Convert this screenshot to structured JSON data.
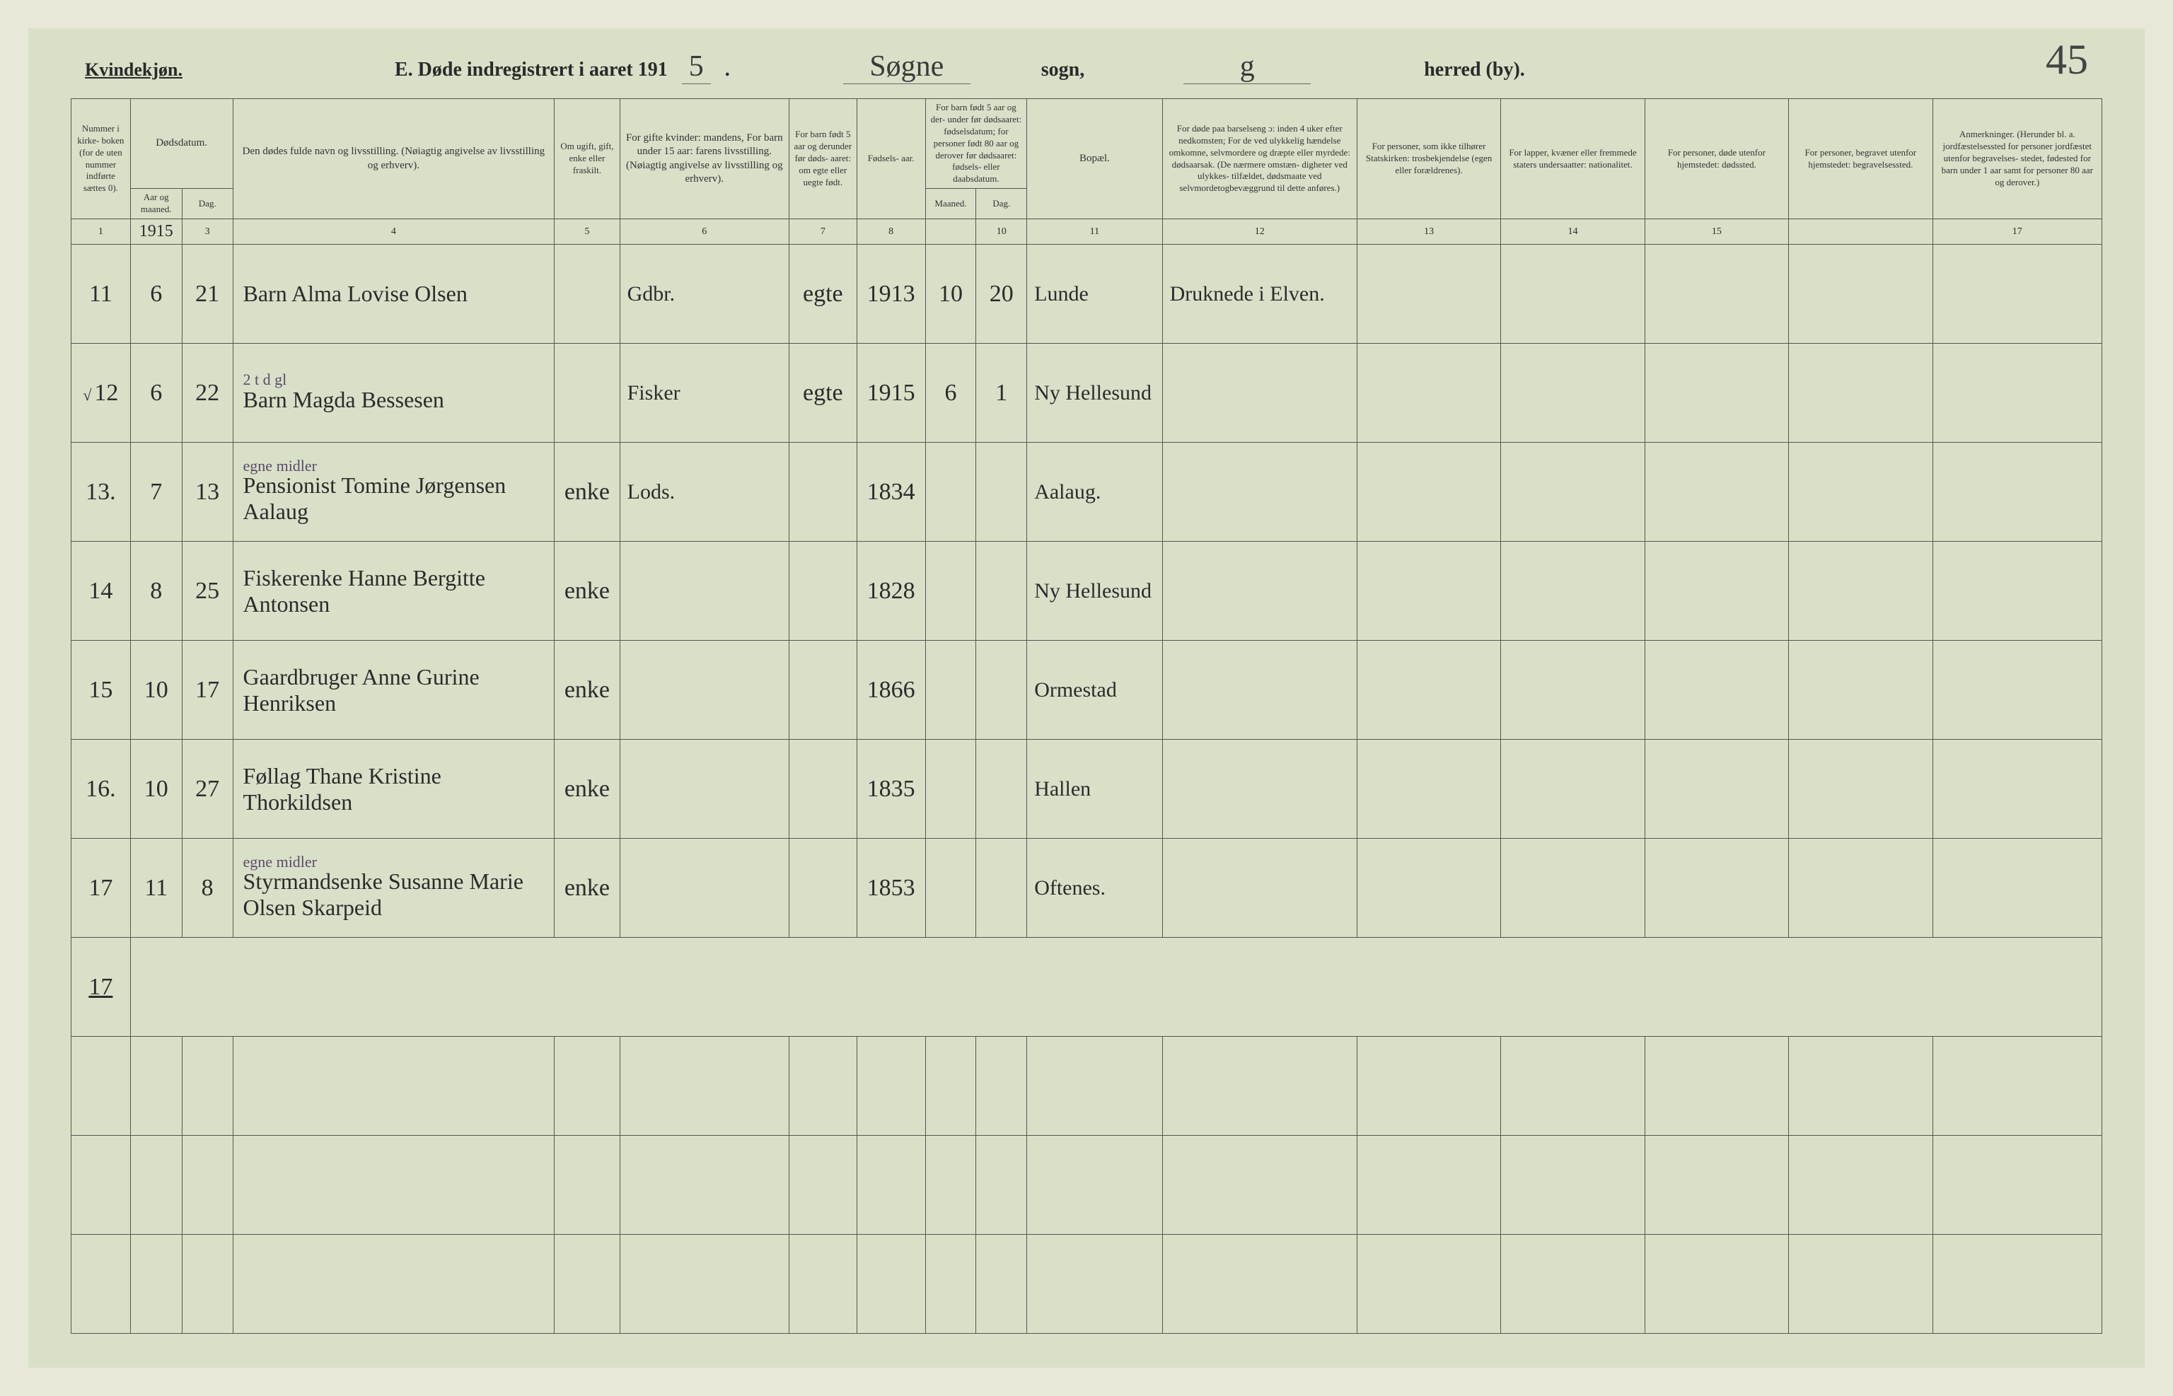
{
  "header": {
    "kvindekjon": "Kvindekjøn.",
    "title_prefix": "E.  Døde indregistrert i aaret 191",
    "year_suffix": "5",
    "sogn_value": "Søgne",
    "sogn_label": "sogn,",
    "herred_value": "g",
    "herred_label": "herred (by).",
    "page_number": "45"
  },
  "columns": {
    "c1": "Nummer i kirke- boken (for de uten nummer indførte sættes 0).",
    "c2_group": "Dødsdatum.",
    "c2a": "Aar og maaned.",
    "c2b": "Dag.",
    "c4": "Den dødes fulde navn og livsstilling.\n(Nøiagtig angivelse av livsstilling og erhverv).",
    "c5": "Om ugift, gift, enke eller fraskilt.",
    "c6": "For gifte kvinder: mandens,\nFor barn under 15 aar: farens livsstilling.\n(Nøiagtig angivelse av livsstilling og erhverv).",
    "c7": "For barn født 5 aar og derunder før døds- aaret: om egte eller uegte født.",
    "c8": "Fødsels- aar.",
    "c9_group": "For barn født 5 aar og der- under før dødsaaret: fødselsdatum; for personer født 80 aar og derover før dødsaaret: fødsels- eller daabsdatum.",
    "c9a": "Maaned.",
    "c9b": "Dag.",
    "c11": "Bopæl.",
    "c12": "For døde paa barselseng ɔ: inden 4 uker efter nedkomsten; For de ved ulykkelig hændelse omkomne, selvmordere og dræpte eller myrdede: dødsaarsak. (De nærmere omstæn- digheter ved ulykkes- tilfældet, dødsmaate ved selvmordetogbevæggrund til dette anføres.)",
    "c13": "For personer, som ikke tilhører Statskirken: trosbekjendelse (egen eller forældrenes).",
    "c14": "For lapper, kvæner eller fremmede staters undersaatter: nationalitet.",
    "c15": "For personer, døde utenfor hjemstedet: dødssted.",
    "c16": "For personer, begravet utenfor hjemstedet: begravelsessted.",
    "c17": "Anmerkninger.\n(Herunder bl. a. jordfæstelsessted for personer jordfæstet utenfor begravelses- stedet, fødested for barn under 1 aar samt for personer 80 aar og derover.)"
  },
  "colnums": [
    "1",
    "",
    "3",
    "4",
    "5",
    "6",
    "7",
    "8",
    "",
    "10",
    "11",
    "12",
    "13",
    "14",
    "15",
    "",
    "17"
  ],
  "year_cell": "1915",
  "red_annotation": "2 t",
  "rows": [
    {
      "num": "11",
      "aar": "6",
      "dag": "21",
      "name": "Barn Alma Lovise Olsen",
      "status": "",
      "parent": "Gdbr.",
      "egte": "egte",
      "faar": "1913",
      "fmnd": "10",
      "fdag": "20",
      "bopael": "Lunde",
      "cause": "Druknede i Elven."
    },
    {
      "num": "12",
      "prefix": "√",
      "aar": "6",
      "dag": "22",
      "name": "Barn Magda Bessesen",
      "status": "",
      "parent": "Fisker",
      "egte": "egte",
      "faar": "1915",
      "fmnd": "6",
      "fdag": "1",
      "name_above": "2 t d gl",
      "bopael": "Ny Hellesund",
      "cause": ""
    },
    {
      "num": "13.",
      "aar": "7",
      "dag": "13",
      "name": "Pensionist Tomine Jørgensen Aalaug",
      "name_above": "egne midler",
      "status": "enke",
      "parent": "Lods.",
      "egte": "",
      "faar": "1834",
      "fmnd": "",
      "fdag": "",
      "bopael": "Aalaug.",
      "cause": ""
    },
    {
      "num": "14",
      "aar": "8",
      "dag": "25",
      "name": "Fiskerenke Hanne Bergitte Antonsen",
      "status": "enke",
      "parent": "",
      "egte": "",
      "faar": "1828",
      "fmnd": "",
      "fdag": "",
      "bopael": "Ny Hellesund",
      "cause": ""
    },
    {
      "num": "15",
      "aar": "10",
      "dag": "17",
      "name": "Gaardbruger Anne Gurine Henriksen",
      "status": "enke",
      "parent": "",
      "egte": "",
      "faar": "1866",
      "fmnd": "",
      "fdag": "",
      "bopael": "Ormestad",
      "cause": ""
    },
    {
      "num": "16.",
      "aar": "10",
      "dag": "27",
      "name": "Føllag Thane Kristine Thorkildsen",
      "status": "enke",
      "parent": "",
      "egte": "",
      "faar": "1835",
      "fmnd": "",
      "fdag": "",
      "bopael": "Hallen",
      "cause": ""
    },
    {
      "num": "17",
      "aar": "11",
      "dag": "8",
      "name_above": "egne midler",
      "name": "Styrmandsenke Susanne Marie Olsen Skarpeid",
      "status": "enke",
      "parent": "",
      "egte": "",
      "faar": "1853",
      "fmnd": "",
      "fdag": "",
      "bopael": "Oftenes.",
      "cause": ""
    }
  ],
  "sum_row": "17",
  "colors": {
    "page_bg": "#d9e0c8",
    "border": "#555",
    "handwriting": "#2b2b2b",
    "red": "#c0392b"
  }
}
